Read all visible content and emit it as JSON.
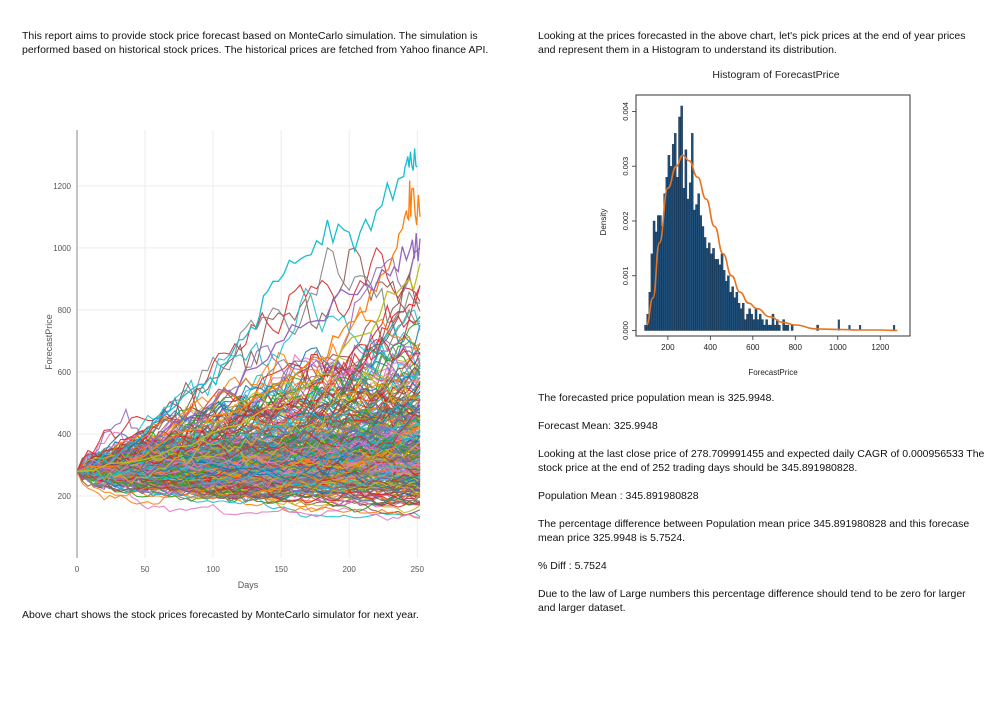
{
  "intro_text": "This report aims to provide stock price forecast based on MonteCarlo simulation. The simulation is performed based on historical stock prices. The historical prices are fetched from Yahoo finance API.",
  "left_caption": "Above chart shows the stock prices forecasted by MonteCarlo simulator for next year.",
  "right_intro": "Looking at the prices forecasted in the above chart, let's pick prices at the end of year prices and represent them in a Histogram to understand its distribution.",
  "right_paragraphs": [
    "The forecasted price population mean is 325.9948.",
    "Forecast Mean: 325.9948",
    "Looking at the last close price of 278.709991455 and expected daily CAGR of 0.000956533 The stock price at the end of 252 trading days should be 345.891980828.",
    "Population Mean : 345.891980828",
    "The percentage difference between Population mean price 345.891980828 and this forecase mean price 325.9948 is 5.7524.",
    "% Diff : 5.7524",
    "Due to the law of Large numbers this percentage difference should tend to be zero for larger and larger dataset."
  ],
  "chart_data": [
    {
      "type": "line",
      "title": "",
      "xlabel": "Days",
      "ylabel": "ForecastPrice",
      "xlim": [
        0,
        252
      ],
      "ylim": [
        0,
        1380
      ],
      "x_ticks": [
        0,
        50,
        100,
        150,
        200,
        250
      ],
      "y_ticks": [
        200,
        400,
        600,
        800,
        1000,
        1200
      ],
      "grid": true,
      "start_value": 278.71,
      "series_count": "many simulated paths",
      "highlighted_paths": [
        {
          "color": "#17becf",
          "points": [
            [
              0,
              280
            ],
            [
              30,
              330
            ],
            [
              60,
              450
            ],
            [
              90,
              560
            ],
            [
              110,
              630
            ],
            [
              125,
              720
            ],
            [
              140,
              860
            ],
            [
              160,
              950
            ],
            [
              180,
              1010
            ],
            [
              200,
              1050
            ],
            [
              220,
              1120
            ],
            [
              240,
              1230
            ],
            [
              245,
              1310
            ],
            [
              250,
              1260
            ]
          ]
        },
        {
          "color": "#ff7f0e",
          "points": [
            [
              0,
              280
            ],
            [
              50,
              330
            ],
            [
              100,
              460
            ],
            [
              150,
              570
            ],
            [
              180,
              640
            ],
            [
              200,
              760
            ],
            [
              220,
              860
            ],
            [
              235,
              1000
            ],
            [
              242,
              1120
            ],
            [
              246,
              1190
            ],
            [
              252,
              1100
            ]
          ]
        },
        {
          "color": "#9467bd",
          "points": [
            [
              0,
              280
            ],
            [
              50,
              360
            ],
            [
              100,
              500
            ],
            [
              140,
              640
            ],
            [
              170,
              760
            ],
            [
              200,
              850
            ],
            [
              230,
              910
            ],
            [
              245,
              1000
            ],
            [
              252,
              1030
            ]
          ]
        },
        {
          "color": "#bcbd22",
          "points": [
            [
              0,
              280
            ],
            [
              60,
              330
            ],
            [
              120,
              430
            ],
            [
              170,
              560
            ],
            [
              210,
              720
            ],
            [
              240,
              880
            ],
            [
              252,
              950
            ]
          ]
        }
      ]
    },
    {
      "type": "bar",
      "title": "Histogram of ForecastPrice",
      "xlabel": "ForecastPrice",
      "ylabel": "Density",
      "xlim": [
        50,
        1340
      ],
      "ylim": [
        -0.0001,
        0.0043
      ],
      "x_ticks": [
        200,
        400,
        600,
        800,
        1000,
        1200
      ],
      "y_ticks": [
        0.0,
        0.001,
        0.002,
        0.003,
        0.004
      ],
      "y_tick_labels": [
        "0.000",
        "0.001",
        "0.002",
        "0.003",
        "0.004"
      ],
      "bin_start": 90,
      "bin_width": 10,
      "values": [
        0.0001,
        0.0003,
        0.0007,
        0.0014,
        0.002,
        0.0018,
        0.0021,
        0.0021,
        0.0019,
        0.0025,
        0.0028,
        0.0032,
        0.003,
        0.0034,
        0.0036,
        0.0028,
        0.0039,
        0.0041,
        0.0026,
        0.0033,
        0.0024,
        0.0027,
        0.0036,
        0.0022,
        0.0023,
        0.0025,
        0.0021,
        0.0019,
        0.0017,
        0.0015,
        0.0016,
        0.0014,
        0.0015,
        0.0013,
        0.0013,
        0.0012,
        0.0014,
        0.0011,
        0.0009,
        0.001,
        0.0007,
        0.0008,
        0.0006,
        0.0007,
        0.0005,
        0.0004,
        0.0005,
        0.0002,
        0.0003,
        0.0004,
        0.0003,
        0.0002,
        0.0004,
        0.0002,
        0.0003,
        0.0002,
        0.0001,
        0.0002,
        0.0001,
        0.0001,
        0.0003,
        0.0001,
        0.0002,
        0.0001,
        0.0,
        0.0002,
        0.0001,
        0.0001,
        0.0,
        0.0001,
        0.0,
        0.0,
        0.0,
        0.0,
        0.0,
        0.0,
        0.0,
        0.0,
        0.0,
        0.0,
        0.0,
        0.0001
      ],
      "outlier_bins": [
        [
          1000,
          0.0002
        ],
        [
          1050,
          0.0001
        ],
        [
          1100,
          0.0001
        ],
        [
          1260,
          0.0001
        ]
      ],
      "density_curve": [
        [
          100,
          0.0001
        ],
        [
          130,
          0.0006
        ],
        [
          160,
          0.0016
        ],
        [
          200,
          0.0026
        ],
        [
          240,
          0.003
        ],
        [
          270,
          0.0032
        ],
        [
          300,
          0.0031
        ],
        [
          340,
          0.0028
        ],
        [
          380,
          0.0024
        ],
        [
          420,
          0.0019
        ],
        [
          460,
          0.0014
        ],
        [
          500,
          0.001
        ],
        [
          540,
          0.0007
        ],
        [
          580,
          0.0005
        ],
        [
          620,
          0.0004
        ],
        [
          680,
          0.00025
        ],
        [
          740,
          0.00015
        ],
        [
          800,
          0.0001
        ],
        [
          900,
          3e-05
        ],
        [
          1000,
          2e-05
        ],
        [
          1100,
          1e-05
        ],
        [
          1200,
          1e-05
        ],
        [
          1280,
          0.0
        ]
      ],
      "bar_color": "#1f4e79",
      "curve_color": "#e8731e"
    }
  ]
}
